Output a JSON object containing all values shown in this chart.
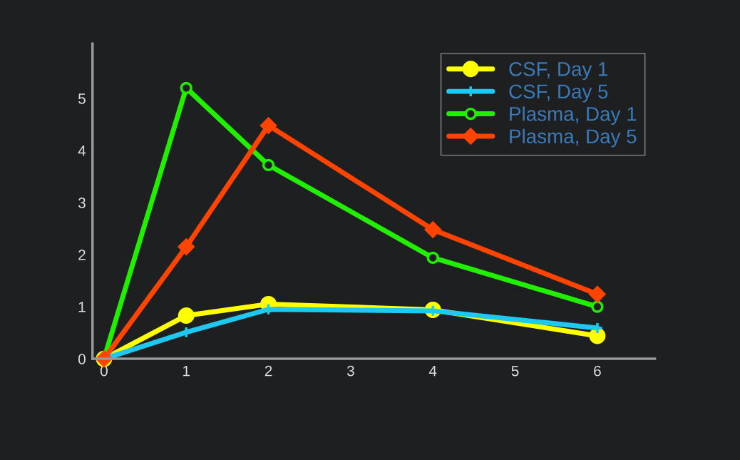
{
  "chart_data": {
    "type": "line",
    "x": [
      0,
      1,
      2,
      4,
      6
    ],
    "series": [
      {
        "name": "CSF, Day 1",
        "color": "#ffff00",
        "marker": "circle",
        "values": [
          0,
          0.83,
          1.05,
          0.94,
          0.44
        ]
      },
      {
        "name": "CSF, Day 5",
        "color": "#1ec8f0",
        "marker": "cross",
        "values": [
          0,
          0.51,
          0.95,
          0.92,
          0.59
        ]
      },
      {
        "name": "Plasma, Day 1",
        "color": "#22ee00",
        "marker": "open circle",
        "values": [
          0,
          5.2,
          3.72,
          1.94,
          1.0
        ]
      },
      {
        "name": "Plasma, Day 5",
        "color": "#ff4400",
        "marker": "diamond",
        "values": [
          0,
          2.15,
          4.48,
          2.48,
          1.24
        ]
      }
    ],
    "xlim": [
      -0.14,
      6.7
    ],
    "xticks": [
      0,
      1,
      2,
      3,
      4,
      5,
      6
    ],
    "ylim": [
      0,
      6.05
    ],
    "yticks": [
      0,
      1,
      2,
      3,
      4,
      5
    ],
    "grid": false,
    "legend": "top right"
  }
}
